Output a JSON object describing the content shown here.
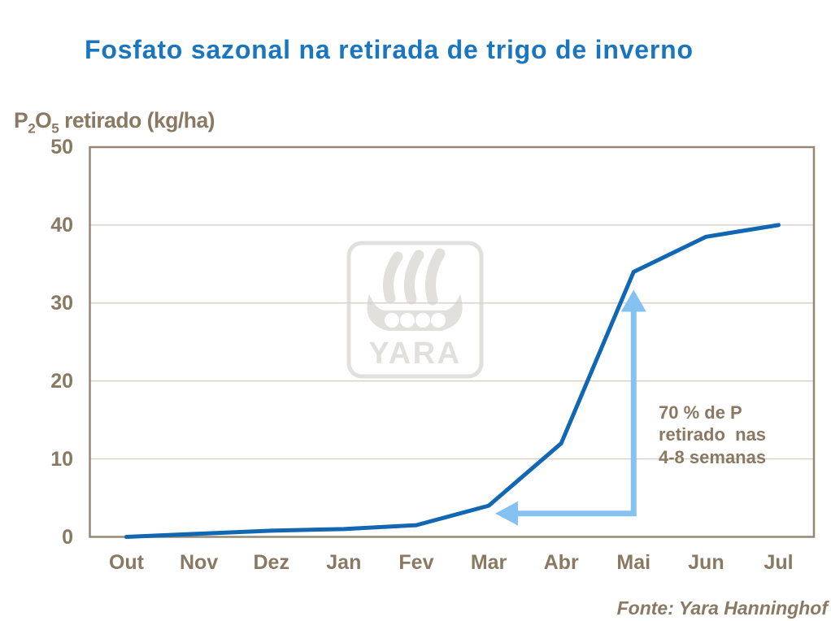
{
  "chart_data": {
    "type": "line",
    "title": "Fosfato sazonal na retirada de trigo de inverno",
    "ylabel_parts": {
      "p": "P",
      "p_sub": "2",
      "o": "O",
      "o_sub": "5",
      "rest": " retirado (kg/ha)"
    },
    "categories": [
      "Out",
      "Nov",
      "Dez",
      "Jan",
      "Fev",
      "Mar",
      "Abr",
      "Mai",
      "Jun",
      "Jul"
    ],
    "values": [
      0,
      0.4,
      0.8,
      1.0,
      1.5,
      4,
      12,
      34,
      38.5,
      40
    ],
    "ylim": [
      0,
      50
    ],
    "yticks": [
      0,
      10,
      20,
      30,
      40,
      50
    ],
    "grid": true,
    "legend": false,
    "annotation": {
      "lines": [
        "70 % de P",
        "retirado  nas",
        "4-8 semanas"
      ],
      "arrow": {
        "corner_month": "Mai",
        "horizontal_tip_month": "Mar",
        "y_value": 3,
        "vertical_tip_value": 31.7
      }
    },
    "source": "Fonte: Yara Hanninghof",
    "watermark": "YARA",
    "colors": {
      "title": "#1B76C0",
      "line": "#1167B2",
      "arrow": "#85C2F2",
      "text_brown": "#8A7962",
      "plot_border": "#968877",
      "grid": "#D6CFC6",
      "watermark": "#E2E0DD"
    }
  }
}
